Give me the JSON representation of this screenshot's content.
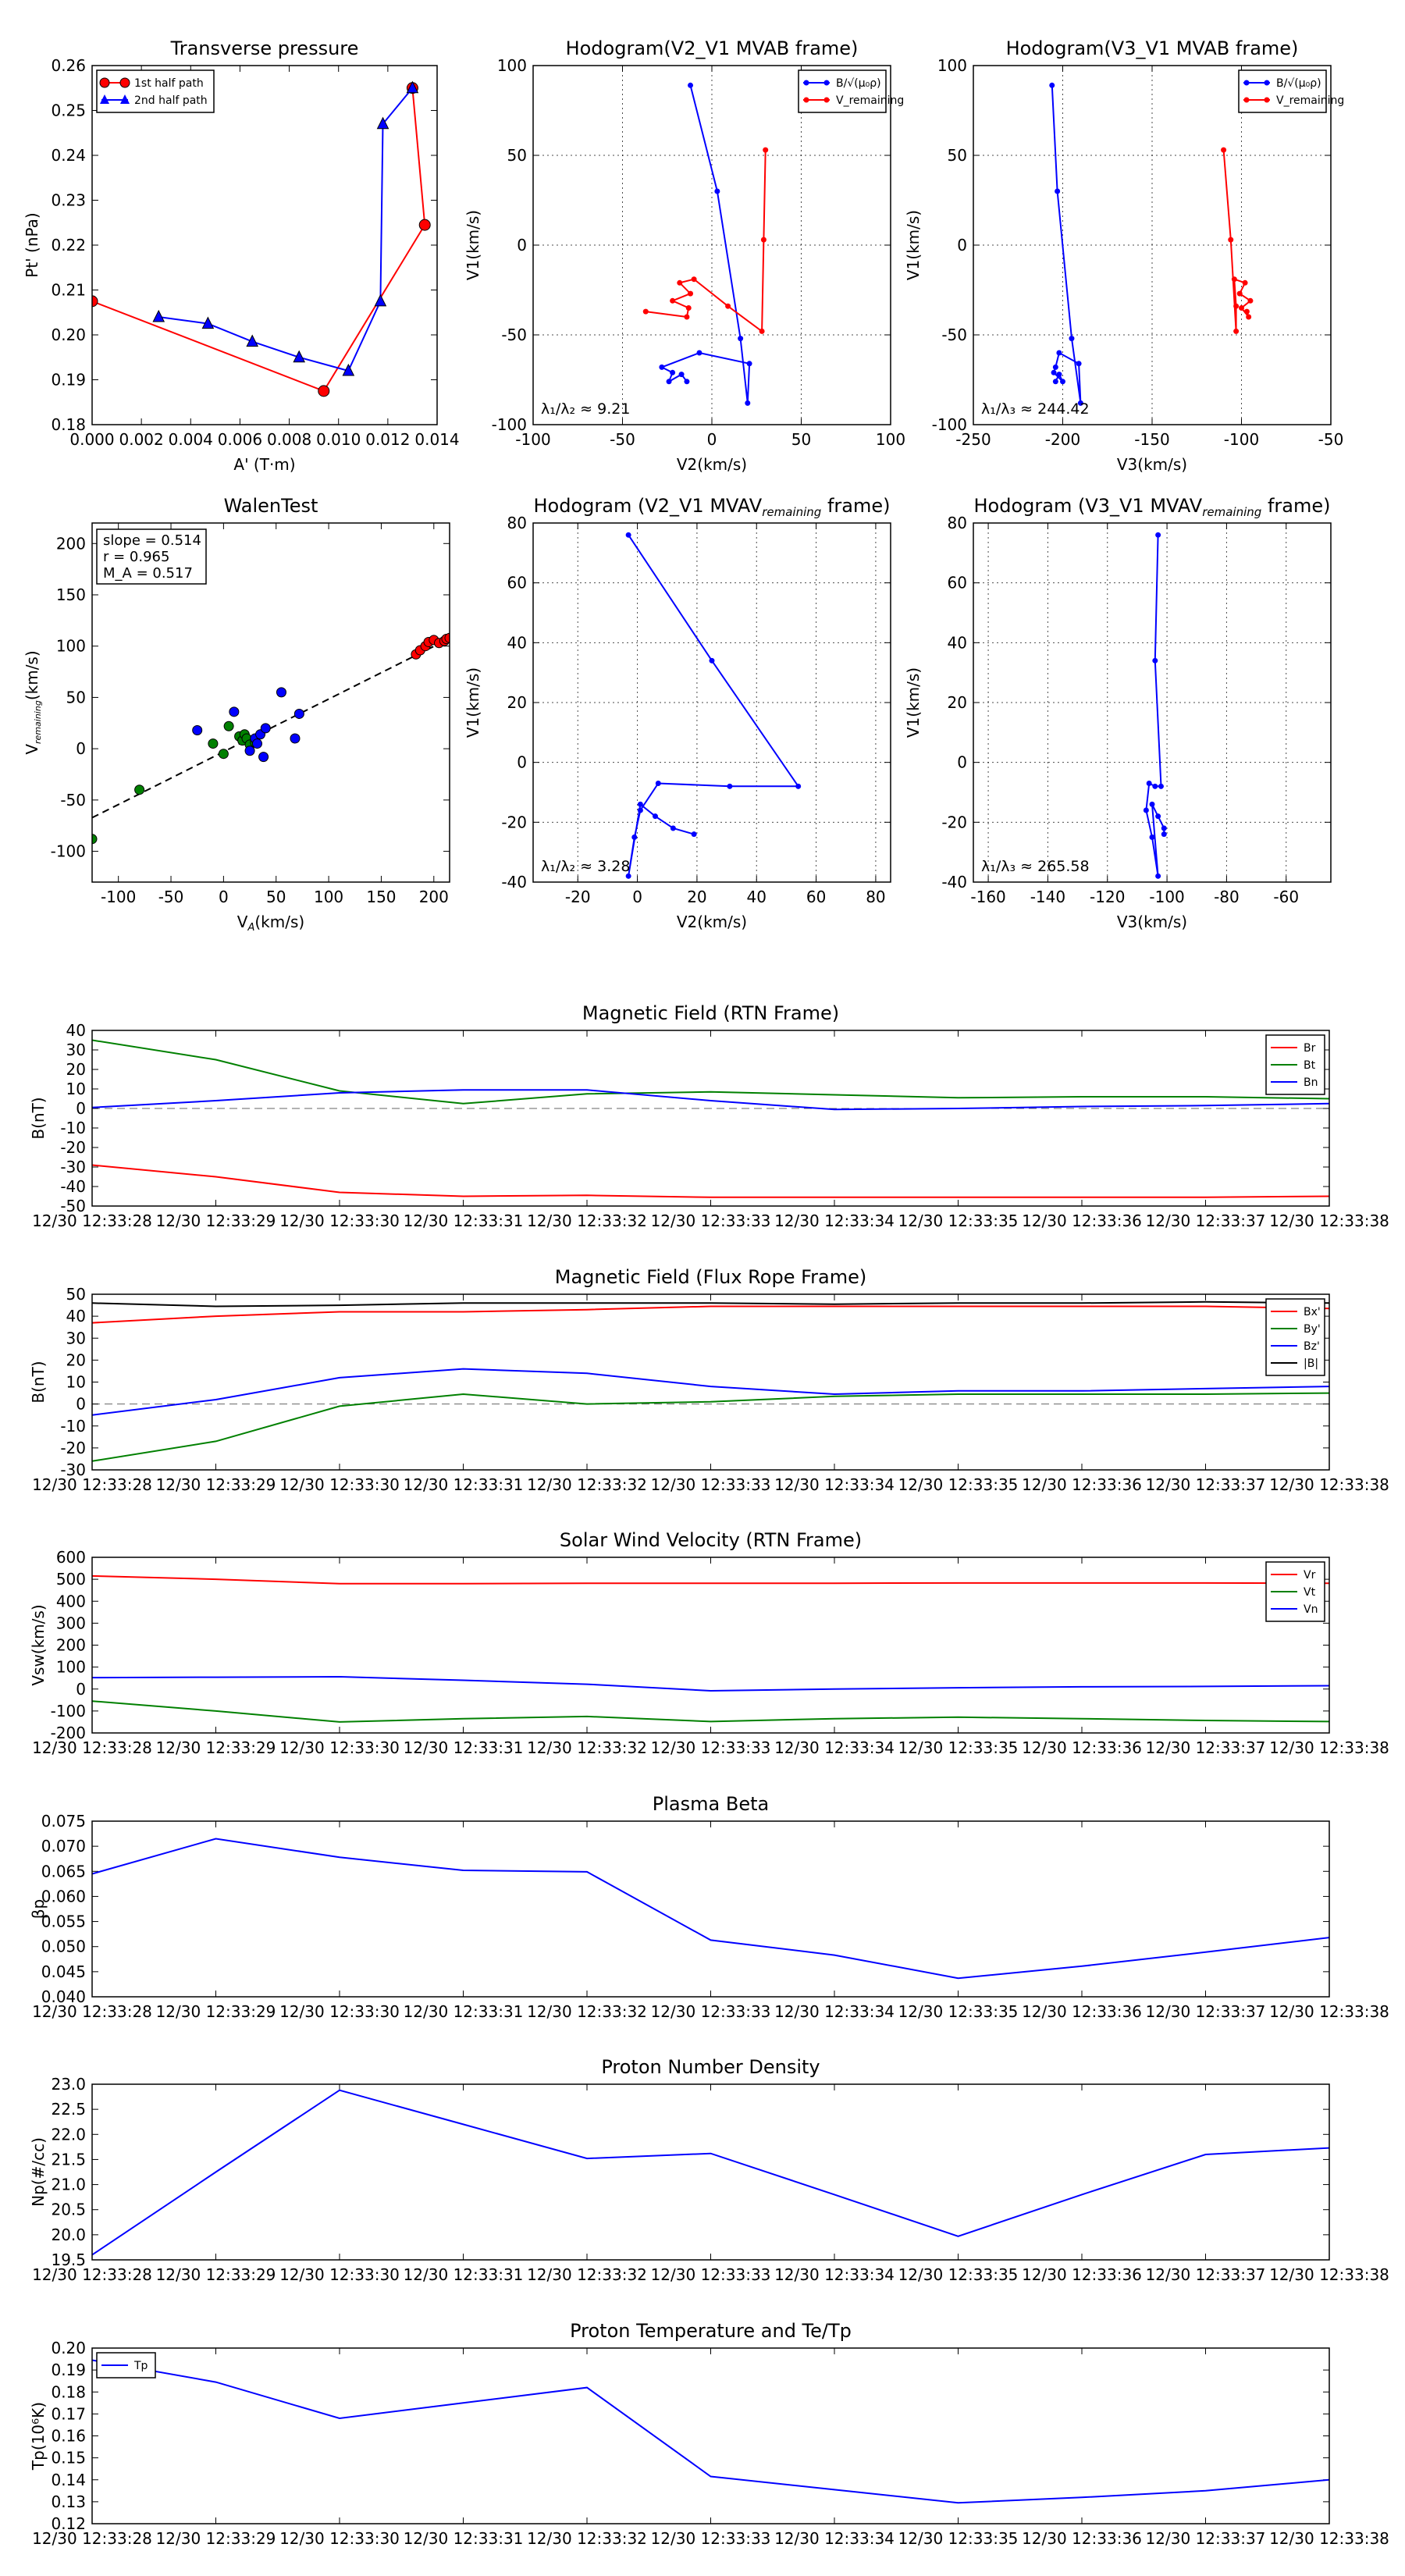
{
  "chart_data": [
    {
      "id": "pt",
      "type": "line",
      "title": "Transverse pressure",
      "xlabel": "A' (T·m)",
      "ylabel": "Pt' (nPa)",
      "xlim": [
        0,
        0.014
      ],
      "ylim": [
        0.18,
        0.26
      ],
      "xticks": [
        0,
        0.002,
        0.004,
        0.006,
        0.008,
        0.01,
        0.012,
        0.014
      ],
      "xticklabels": [
        "0.000",
        "0.002",
        "0.004",
        "0.006",
        "0.008",
        "0.010",
        "0.012",
        "0.014"
      ],
      "yticks": [
        0.18,
        0.19,
        0.2,
        0.21,
        0.22,
        0.23,
        0.24,
        0.25,
        0.26
      ],
      "yticklabels": [
        "0.18",
        "0.19",
        "0.20",
        "0.21",
        "0.22",
        "0.23",
        "0.24",
        "0.25",
        "0.26"
      ],
      "grid": false,
      "legend": "top-left",
      "series": [
        {
          "name": "1st half path",
          "color": "#ff0000",
          "marker": "circle",
          "x": [
            0.0,
            0.0094,
            0.0135,
            0.013
          ],
          "y": [
            0.2075,
            0.1875,
            0.2245,
            0.255
          ]
        },
        {
          "name": "2nd half path",
          "color": "#0000ff",
          "marker": "triangle",
          "x": [
            0.013,
            0.0118,
            0.0117,
            0.0104,
            0.0084,
            0.0065,
            0.0047,
            0.0027
          ],
          "y": [
            0.255,
            0.247,
            0.2075,
            0.192,
            0.195,
            0.1985,
            0.2025,
            0.204
          ]
        }
      ]
    },
    {
      "id": "hodo1",
      "type": "line",
      "title": "Hodogram(V2_V1 MVAB frame)",
      "xlabel": "V2(km/s)",
      "ylabel": "V1(km/s)",
      "xlim": [
        -100,
        100
      ],
      "ylim": [
        -100,
        100
      ],
      "xticks": [
        -100,
        -50,
        0,
        50,
        100
      ],
      "yticks": [
        -100,
        -50,
        0,
        50,
        100
      ],
      "grid": true,
      "legend": "top-right",
      "annotation": "λ₁/λ₂ ≈ 9.21",
      "series": [
        {
          "name": "B/√(μ₀ρ)",
          "color": "#0000ff",
          "x": [
            -12,
            3,
            16,
            20,
            21,
            -7,
            -28,
            -22,
            -24,
            -17,
            -14
          ],
          "y": [
            89,
            30,
            -52,
            -88,
            -66,
            -60,
            -68,
            -71,
            -76,
            -72,
            -76
          ]
        },
        {
          "name": "V_remaining",
          "color": "#ff0000",
          "x": [
            30,
            29,
            28,
            9,
            -10,
            -18,
            -12,
            -22,
            -13,
            -14,
            -37
          ],
          "y": [
            53,
            3,
            -48,
            -34,
            -19,
            -21,
            -27,
            -31,
            -35,
            -40,
            -37
          ]
        }
      ]
    },
    {
      "id": "hodo2",
      "type": "line",
      "title": "Hodogram(V3_V1 MVAB frame)",
      "xlabel": "V3(km/s)",
      "ylabel": "V1(km/s)",
      "xlim": [
        -250,
        -50
      ],
      "ylim": [
        -100,
        100
      ],
      "xticks": [
        -250,
        -200,
        -150,
        -100,
        -50
      ],
      "yticks": [
        -100,
        -50,
        0,
        50,
        100
      ],
      "grid": true,
      "legend": "top-right",
      "annotation": "λ₁/λ₃ ≈ 244.42",
      "series": [
        {
          "name": "B/√(μ₀ρ)",
          "color": "#0000ff",
          "x": [
            -206,
            -203,
            -195,
            -190,
            -191,
            -202,
            -204,
            -205,
            -200,
            -202,
            -204
          ],
          "y": [
            89,
            30,
            -52,
            -88,
            -66,
            -60,
            -68,
            -71,
            -76,
            -72,
            -76
          ]
        },
        {
          "name": "V_remaining",
          "color": "#ff0000",
          "x": [
            -110,
            -106,
            -103,
            -103,
            -104,
            -98,
            -101,
            -95,
            -100,
            -96,
            -97
          ],
          "y": [
            53,
            3,
            -48,
            -34,
            -19,
            -21,
            -27,
            -31,
            -35,
            -40,
            -37
          ]
        }
      ]
    },
    {
      "id": "walen",
      "type": "scatter",
      "title": "WalenTest",
      "xlabel": "V_A(km/s)",
      "ylabel": "V_remaining(km/s)",
      "xlim": [
        -125,
        215
      ],
      "ylim": [
        -130,
        220
      ],
      "xticks": [
        -100,
        -50,
        0,
        50,
        100,
        150,
        200
      ],
      "yticks": [
        -100,
        -50,
        0,
        50,
        100,
        150,
        200
      ],
      "grid": false,
      "stats": [
        "slope = 0.514",
        "r = 0.965",
        "M_A = 0.517"
      ],
      "fit_line": {
        "slope": 0.514,
        "intercept": -3
      },
      "series": [
        {
          "name": "green",
          "color": "#008000",
          "x": [
            -125,
            -80,
            -10,
            0,
            5,
            15,
            18,
            20,
            22,
            25,
            30
          ],
          "y": [
            -88,
            -40,
            5,
            -5,
            22,
            12,
            8,
            14,
            10,
            4,
            6
          ]
        },
        {
          "name": "blue",
          "color": "#0000ff",
          "x": [
            -25,
            10,
            25,
            30,
            32,
            35,
            38,
            40,
            55,
            68,
            72
          ],
          "y": [
            18,
            36,
            -2,
            10,
            5,
            14,
            -8,
            20,
            55,
            10,
            34
          ]
        },
        {
          "name": "red",
          "color": "#ff0000",
          "x": [
            183,
            187,
            192,
            195,
            200,
            205,
            210,
            212,
            215
          ],
          "y": [
            92,
            96,
            100,
            104,
            106,
            103,
            105,
            107,
            108
          ]
        }
      ]
    },
    {
      "id": "hodo3",
      "type": "line",
      "title": "Hodogram (V2_V1 MVAV",
      "title_sub": "remaining",
      "title_end": " frame)",
      "xlabel": "V2(km/s)",
      "ylabel": "V1(km/s)",
      "xlim": [
        -35,
        85
      ],
      "ylim": [
        -40,
        80
      ],
      "xticks": [
        -20,
        0,
        20,
        40,
        60,
        80
      ],
      "yticks": [
        -40,
        -20,
        0,
        20,
        40,
        60,
        80
      ],
      "grid": true,
      "annotation": "λ₁/λ₂ ≈ 3.28",
      "series": [
        {
          "name": "Vrem",
          "color": "#0000ff",
          "x": [
            -3,
            25,
            54,
            31,
            7,
            1,
            -1,
            -3,
            1,
            6,
            12,
            19
          ],
          "y": [
            76,
            34,
            -8,
            -8,
            -7,
            -16,
            -25,
            -38,
            -14,
            -18,
            -22,
            -24
          ]
        }
      ]
    },
    {
      "id": "hodo4",
      "type": "line",
      "title": "Hodogram (V3_V1 MVAV",
      "title_sub": "remaining",
      "title_end": " frame)",
      "xlabel": "V3(km/s)",
      "ylabel": "V1(km/s)",
      "xlim": [
        -165,
        -45
      ],
      "ylim": [
        -40,
        80
      ],
      "xticks": [
        -160,
        -140,
        -120,
        -100,
        -80,
        -60
      ],
      "yticks": [
        -40,
        -20,
        0,
        20,
        40,
        60,
        80
      ],
      "grid": true,
      "annotation": "λ₁/λ₃ ≈ 265.58",
      "series": [
        {
          "name": "Vrem",
          "color": "#0000ff",
          "x": [
            -103,
            -104,
            -102,
            -104,
            -106,
            -107,
            -105,
            -103,
            -105,
            -103,
            -101,
            -101
          ],
          "y": [
            76,
            34,
            -8,
            -8,
            -7,
            -16,
            -25,
            -38,
            -14,
            -18,
            -22,
            -24
          ]
        }
      ]
    },
    {
      "id": "brtn",
      "type": "line",
      "title": "Magnetic Field (RTN Frame)",
      "ylabel": "B(nT)",
      "ylim": [
        -50,
        40
      ],
      "yticks": [
        -50,
        -40,
        -30,
        -20,
        -10,
        0,
        10,
        20,
        30,
        40
      ],
      "zero_line": true,
      "legend": "top-right",
      "series": [
        {
          "name": "Br",
          "color": "#ff0000",
          "values": [
            -29,
            -35,
            -43,
            -45,
            -44.5,
            -45.5,
            -45.5,
            -45.5,
            -45.5,
            -45.5,
            -45
          ]
        },
        {
          "name": "Bt",
          "color": "#008000",
          "values": [
            35,
            25,
            9,
            2.5,
            7.5,
            8.5,
            7,
            5.5,
            6,
            6,
            5
          ]
        },
        {
          "name": "Bn",
          "color": "#0000ff",
          "values": [
            0.5,
            4,
            8,
            9.5,
            9.5,
            4,
            -0.5,
            0,
            1,
            1.5,
            2.5
          ]
        }
      ]
    },
    {
      "id": "bfr",
      "type": "line",
      "title": "Magnetic Field (Flux Rope Frame)",
      "ylabel": "B(nT)",
      "ylim": [
        -30,
        50
      ],
      "yticks": [
        -30,
        -20,
        -10,
        0,
        10,
        20,
        30,
        40,
        50
      ],
      "zero_line": true,
      "legend": "top-right",
      "series": [
        {
          "name": "Bx'",
          "color": "#ff0000",
          "values": [
            37,
            40,
            42,
            42,
            43,
            44.5,
            44.5,
            44.5,
            44.5,
            44.5,
            43.5
          ]
        },
        {
          "name": "By'",
          "color": "#008000",
          "values": [
            -26,
            -17,
            -1,
            4.5,
            0,
            1,
            3.5,
            4.5,
            4.5,
            4.5,
            5
          ]
        },
        {
          "name": "Bz'",
          "color": "#0000ff",
          "values": [
            -5,
            2,
            12,
            16,
            14,
            8,
            4.5,
            6,
            6,
            7,
            8
          ]
        },
        {
          "name": "|B|",
          "color": "#000000",
          "values": [
            46,
            44.5,
            45,
            46,
            46,
            46,
            45.5,
            46,
            46,
            46.5,
            46
          ]
        }
      ]
    },
    {
      "id": "vsw",
      "type": "line",
      "title": "Solar Wind Velocity (RTN Frame)",
      "ylabel": "Vsw(km/s)",
      "ylim": [
        -200,
        600
      ],
      "yticks": [
        -200,
        -100,
        0,
        100,
        200,
        300,
        400,
        500,
        600
      ],
      "zero_line": false,
      "legend": "top-right",
      "series": [
        {
          "name": "Vr",
          "color": "#ff0000",
          "values": [
            515,
            500,
            480,
            480,
            482,
            482,
            482,
            483,
            483,
            483,
            482
          ]
        },
        {
          "name": "Vt",
          "color": "#008000",
          "values": [
            -55,
            -100,
            -150,
            -135,
            -125,
            -148,
            -135,
            -128,
            -135,
            -143,
            -148
          ]
        },
        {
          "name": "Vn",
          "color": "#0000ff",
          "values": [
            52,
            54,
            56,
            40,
            22,
            -8,
            0,
            6,
            10,
            12,
            15
          ]
        }
      ]
    },
    {
      "id": "beta",
      "type": "line",
      "title": "Plasma Beta",
      "ylabel": "βp",
      "ylim": [
        0.04,
        0.075
      ],
      "yticks": [
        0.04,
        0.045,
        0.05,
        0.055,
        0.06,
        0.065,
        0.07,
        0.075
      ],
      "yticklabels": [
        "0.040",
        "0.045",
        "0.050",
        "0.055",
        "0.060",
        "0.065",
        "0.070",
        "0.075"
      ],
      "series": [
        {
          "name": "beta",
          "color": "#0000ff",
          "values": [
            0.0645,
            0.0715,
            0.0678,
            0.0652,
            0.0649,
            0.0513,
            0.0483,
            0.0437,
            0.0461,
            0.0489,
            0.0518
          ]
        }
      ]
    },
    {
      "id": "np",
      "type": "line",
      "title": "Proton Number Density",
      "ylabel": "Np(#/cc)",
      "ylim": [
        19.5,
        23.0
      ],
      "yticks": [
        19.5,
        20.0,
        20.5,
        21.0,
        21.5,
        22.0,
        22.5,
        23.0
      ],
      "yticklabels": [
        "19.5",
        "20.0",
        "20.5",
        "21.0",
        "21.5",
        "22.0",
        "22.5",
        "23.0"
      ],
      "series": [
        {
          "name": "Np",
          "color": "#0000ff",
          "values": [
            19.6,
            21.25,
            22.88,
            22.2,
            21.52,
            21.62,
            20.8,
            19.97,
            20.8,
            21.6,
            21.73
          ]
        }
      ]
    },
    {
      "id": "tp",
      "type": "line",
      "title": "Proton Temperature and Te/Tp",
      "ylabel": "Tp(10⁶K)",
      "ylim": [
        0.12,
        0.2
      ],
      "yticks": [
        0.12,
        0.13,
        0.14,
        0.15,
        0.16,
        0.17,
        0.18,
        0.19,
        0.2
      ],
      "yticklabels": [
        "0.12",
        "0.13",
        "0.14",
        "0.15",
        "0.16",
        "0.17",
        "0.18",
        "0.19",
        "0.20"
      ],
      "legend": "top-left",
      "series": [
        {
          "name": "Tp",
          "color": "#0000ff",
          "values": [
            0.1945,
            0.1845,
            0.168,
            0.175,
            0.182,
            0.1415,
            0.1355,
            0.1295,
            0.132,
            0.135,
            0.14
          ]
        }
      ]
    }
  ],
  "time_ticks": [
    "12/30 12:33:28",
    "12/30 12:33:29",
    "12/30 12:33:30",
    "12/30 12:33:31",
    "12/30 12:33:32",
    "12/30 12:33:33",
    "12/30 12:33:34",
    "12/30 12:33:35",
    "12/30 12:33:36",
    "12/30 12:33:37",
    "12/30 12:33:38"
  ]
}
